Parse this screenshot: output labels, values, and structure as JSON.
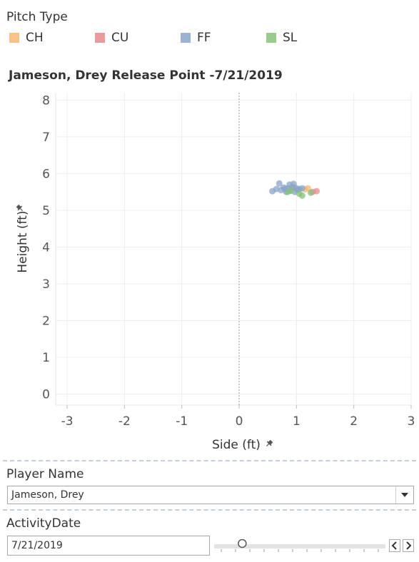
{
  "legend": {
    "title": "Pitch Type",
    "items": [
      {
        "label": "CH",
        "color": "#f7b774"
      },
      {
        "label": "CU",
        "color": "#e8898a"
      },
      {
        "label": "FF",
        "color": "#8aa4c8"
      },
      {
        "label": "SL",
        "color": "#86c27a"
      }
    ]
  },
  "chart_data": {
    "type": "scatter",
    "title": "Jameson, Drey Release Point -7/21/2019",
    "xlabel": "Side (ft)",
    "ylabel": "Height (ft)",
    "xlim": [
      -3.2,
      3.0
    ],
    "ylim": [
      -0.3,
      8.2
    ],
    "x_ticks": [
      -3,
      -2,
      -1,
      0,
      1,
      2,
      3
    ],
    "y_ticks": [
      0,
      1,
      2,
      3,
      4,
      5,
      6,
      7,
      8
    ],
    "grid": true,
    "zero_line": "x=0 dotted",
    "series": [
      {
        "name": "CH",
        "color": "#f7b774",
        "points": [
          [
            1.2,
            5.6
          ],
          [
            1.15,
            5.57
          ],
          [
            0.95,
            5.62
          ]
        ]
      },
      {
        "name": "CU",
        "color": "#e8898a",
        "points": [
          [
            1.35,
            5.52
          ],
          [
            1.28,
            5.5
          ]
        ]
      },
      {
        "name": "FF",
        "color": "#8aa4c8",
        "points": [
          [
            0.58,
            5.52
          ],
          [
            0.65,
            5.58
          ],
          [
            0.7,
            5.73
          ],
          [
            0.73,
            5.55
          ],
          [
            0.78,
            5.62
          ],
          [
            0.82,
            5.5
          ],
          [
            0.85,
            5.6
          ],
          [
            0.88,
            5.7
          ],
          [
            0.9,
            5.55
          ],
          [
            0.93,
            5.63
          ],
          [
            0.95,
            5.72
          ],
          [
            0.97,
            5.5
          ],
          [
            1.0,
            5.6
          ],
          [
            1.02,
            5.55
          ],
          [
            1.05,
            5.58
          ],
          [
            1.1,
            5.6
          ],
          [
            0.8,
            5.58
          ]
        ]
      },
      {
        "name": "SL",
        "color": "#86c27a",
        "points": [
          [
            0.85,
            5.5
          ],
          [
            1.05,
            5.45
          ],
          [
            1.1,
            5.4
          ],
          [
            1.25,
            5.48
          ],
          [
            0.9,
            5.53
          ]
        ]
      }
    ]
  },
  "filters": {
    "player": {
      "label": "Player Name",
      "value": "Jameson, Drey"
    },
    "date": {
      "label": "ActivityDate",
      "value": "7/21/2019",
      "slider_position": 0.14
    }
  }
}
